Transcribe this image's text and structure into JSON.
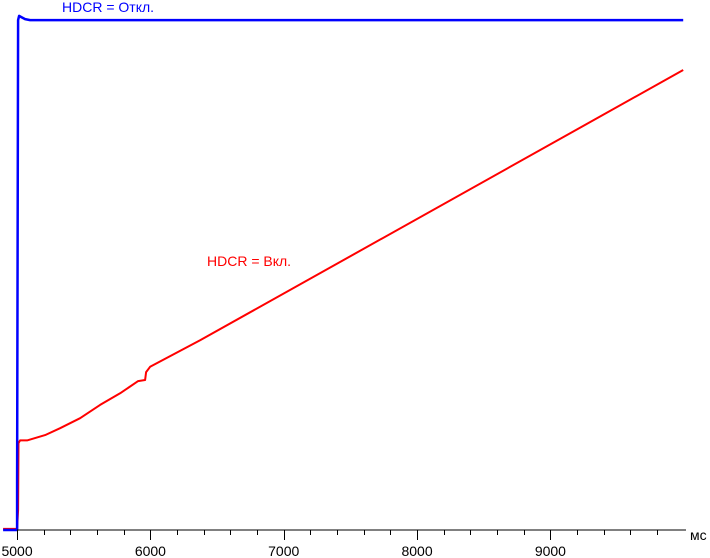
{
  "chart_data": {
    "type": "line",
    "xlabel": "мс",
    "ylabel": "",
    "xlim": [
      4872,
      10197
    ],
    "ylim": [
      0,
      100
    ],
    "x_ticks": [
      5000,
      6000,
      7000,
      8000,
      9000
    ],
    "x_minor_step": 200,
    "grid": false,
    "series": [
      {
        "name": "HDCR = Откл.",
        "color": "#0000ff",
        "x": [
          4895,
          5000,
          5000,
          5008,
          5015,
          5030,
          5060,
          5098,
          9996
        ],
        "values": [
          0,
          0,
          8.7,
          96.2,
          97.0,
          96.8,
          96.4,
          96.2,
          96.2
        ]
      },
      {
        "name": "HDCR = Вкл.",
        "color": "#ff0000",
        "x": [
          4895,
          5000,
          5008,
          5011,
          5023,
          5075,
          5210,
          5323,
          5473,
          5623,
          5773,
          5908,
          5960,
          5968,
          5998,
          6373,
          9996
        ],
        "values": [
          0.2,
          0.2,
          3.8,
          16.4,
          16.9,
          16.9,
          17.9,
          19.2,
          21.1,
          23.6,
          25.8,
          28.1,
          28.3,
          29.8,
          30.8,
          35.8,
          86.8
        ]
      }
    ]
  }
}
